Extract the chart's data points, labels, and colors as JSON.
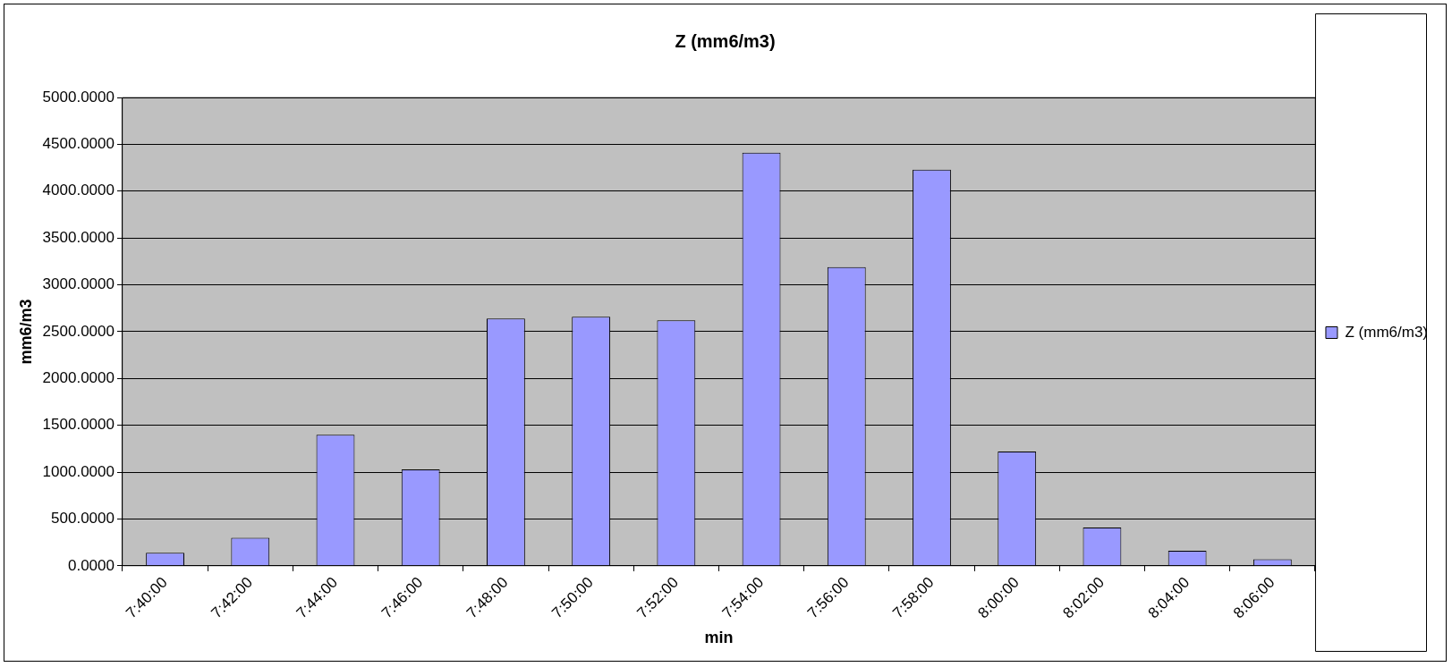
{
  "chart_data": {
    "type": "bar",
    "title": "Z (mm6/m3)",
    "xlabel": "min",
    "ylabel": "mm6/m3",
    "categories": [
      "7:40:00",
      "7:42:00",
      "7:44:00",
      "7:46:00",
      "7:48:00",
      "7:50:00",
      "7:52:00",
      "7:54:00",
      "7:56:00",
      "7:58:00",
      "8:00:00",
      "8:02:00",
      "8:04:00",
      "8:06:00"
    ],
    "series": [
      {
        "name": "Z (mm6/m3)",
        "color": "#9999ff",
        "values": [
          140,
          300,
          1400,
          1030,
          2640,
          2660,
          2620,
          4410,
          3190,
          4230,
          1220,
          410,
          160,
          70
        ]
      }
    ],
    "ylim": [
      0,
      5000
    ],
    "yticks": [
      {
        "value": 0,
        "label": "0.0000"
      },
      {
        "value": 500,
        "label": "500.0000"
      },
      {
        "value": 1000,
        "label": "1000.0000"
      },
      {
        "value": 1500,
        "label": "1500.0000"
      },
      {
        "value": 2000,
        "label": "2000.0000"
      },
      {
        "value": 2500,
        "label": "2500.0000"
      },
      {
        "value": 3000,
        "label": "3000.0000"
      },
      {
        "value": 3500,
        "label": "3500.0000"
      },
      {
        "value": 4000,
        "label": "4000.0000"
      },
      {
        "value": 4500,
        "label": "4500.0000"
      },
      {
        "value": 5000,
        "label": "5000.0000"
      }
    ],
    "grid": "y",
    "legend": "right"
  }
}
